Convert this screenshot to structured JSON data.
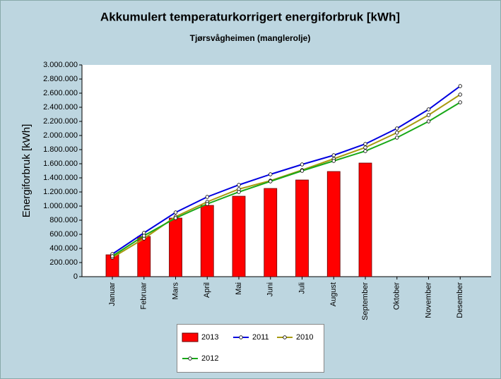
{
  "chart_data": {
    "type": "combo",
    "title": "Akkumulert temperaturkorrigert energiforbruk [kWh]",
    "subtitle": "Tjørsvågheimen (manglerolje)",
    "y_label": "Energiforbruk [kWh]",
    "categories": [
      "Januar",
      "Februar",
      "Mars",
      "April",
      "Mai",
      "Juni",
      "Juli",
      "August",
      "September",
      "Oktober",
      "November",
      "Desember"
    ],
    "series": [
      {
        "name": "2013",
        "type": "bar",
        "color": "#ff0000",
        "values": [
          310000,
          570000,
          830000,
          1010000,
          1140000,
          1250000,
          1370000,
          1490000,
          1610000,
          null,
          null,
          null
        ]
      },
      {
        "name": "2011",
        "type": "line",
        "color": "#0000e0",
        "values": [
          320000,
          620000,
          910000,
          1130000,
          1300000,
          1450000,
          1590000,
          1720000,
          1880000,
          2100000,
          2370000,
          2700000
        ]
      },
      {
        "name": "2010",
        "type": "line",
        "color": "#a89a10",
        "values": [
          270000,
          540000,
          850000,
          1060000,
          1240000,
          1360000,
          1510000,
          1670000,
          1830000,
          2040000,
          2290000,
          2580000
        ]
      },
      {
        "name": "2012",
        "type": "line",
        "color": "#18a818",
        "values": [
          290000,
          580000,
          830000,
          1030000,
          1200000,
          1350000,
          1500000,
          1640000,
          1780000,
          1970000,
          2200000,
          2470000
        ]
      }
    ],
    "ylim": [
      0,
      3000000
    ],
    "yticks": [
      0,
      {
        "value": 200000,
        "label": "200.000"
      },
      {
        "value": 400000,
        "label": "400.000"
      },
      {
        "value": 600000,
        "label": "600.000"
      },
      {
        "value": 800000,
        "label": "800.000"
      },
      {
        "value": 1000000,
        "label": "1.000.000"
      },
      {
        "value": 1200000,
        "label": "1.200.000"
      },
      {
        "value": 1400000,
        "label": "1.400.000"
      },
      {
        "value": 1600000,
        "label": "1.600.000"
      },
      {
        "value": 1800000,
        "label": "1.800.000"
      },
      {
        "value": 2000000,
        "label": "2.000.000"
      },
      {
        "value": 2200000,
        "label": "2.200.000"
      },
      {
        "value": 2400000,
        "label": "2.400.000"
      },
      {
        "value": 2600000,
        "label": "2.600.000"
      },
      {
        "value": 2800000,
        "label": "2.800.000"
      },
      {
        "value": 3000000,
        "label": "3.000.000"
      }
    ],
    "grid": false
  }
}
